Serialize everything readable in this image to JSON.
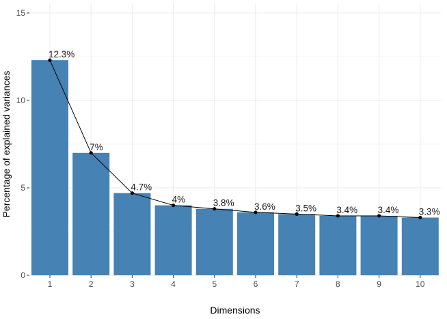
{
  "chart_data": {
    "type": "bar",
    "title": "",
    "xlabel": "Dimensions",
    "ylabel": "Percentage of explained variances",
    "categories": [
      "1",
      "2",
      "3",
      "4",
      "5",
      "6",
      "7",
      "8",
      "9",
      "10"
    ],
    "values": [
      12.3,
      7.0,
      4.7,
      4.0,
      3.8,
      3.6,
      3.5,
      3.4,
      3.4,
      3.3
    ],
    "data_labels": [
      "12.3%",
      "7%",
      "4.7%",
      "4%",
      "3.8%",
      "3.6%",
      "3.5%",
      "3.4%",
      "3.4%",
      "3.3%"
    ],
    "overlay": "line with points connecting bar tops",
    "yticks": [
      0,
      5,
      10,
      15
    ],
    "ylim": [
      0,
      15
    ],
    "grid": true,
    "bar_color": "#4682b4",
    "line_color": "#000000",
    "grid_color": "#ebebeb"
  }
}
